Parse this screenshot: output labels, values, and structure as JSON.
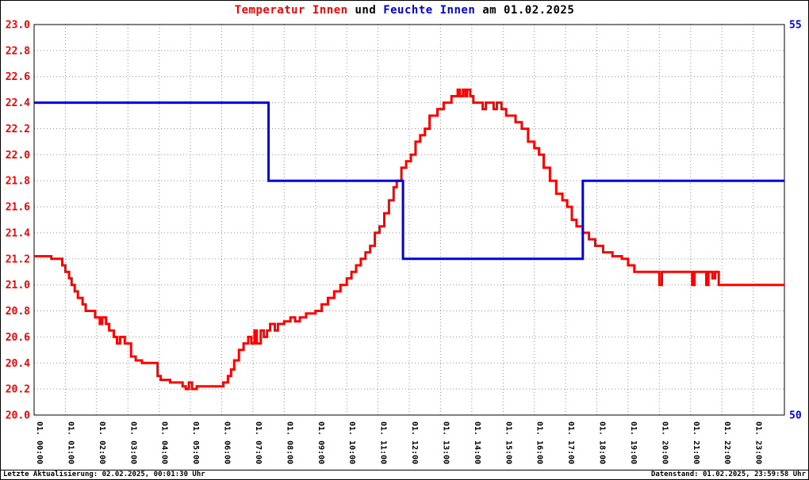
{
  "title": {
    "parts": [
      {
        "text": "Temperatur Innen",
        "color": "#ff0000"
      },
      {
        "text": " und ",
        "color": "#000000"
      },
      {
        "text": "Feuchte Innen",
        "color": "#0000dd"
      },
      {
        "text": " am 01.02.2025",
        "color": "#000000"
      }
    ]
  },
  "footer": {
    "left": "Letzte Aktualisierung: 02.02.2025, 00:01:30 Uhr",
    "right": "Datenstand: 01.02.2025, 23:59:58 Uhr"
  },
  "chart_data": {
    "type": "line",
    "subtype": "step-after",
    "grid": true,
    "grid_color": "#909090",
    "x_range": [
      0,
      24
    ],
    "x_labels": [
      "01. 00:00",
      "01. 01:00",
      "01. 02:00",
      "01. 03:00",
      "01. 04:00",
      "01. 05:00",
      "01. 06:00",
      "01. 07:00",
      "01. 08:00",
      "01. 09:00",
      "01. 10:00",
      "01. 11:00",
      "01. 12:00",
      "01. 13:00",
      "01. 14:00",
      "01. 15:00",
      "01. 16:00",
      "01. 17:00",
      "01. 18:00",
      "01. 19:00",
      "01. 20:00",
      "01. 21:00",
      "01. 22:00",
      "01. 23:00"
    ],
    "y_left": {
      "label": "Temperatur Innen",
      "min": 20.0,
      "max": 23.0,
      "tick_step": 0.2,
      "color": "#ff0000",
      "ticks": [
        "23.0",
        "22.8",
        "22.6",
        "22.4",
        "22.2",
        "22.0",
        "21.8",
        "21.6",
        "21.4",
        "21.2",
        "21.0",
        "20.8",
        "20.6",
        "20.4",
        "20.2",
        "20.0"
      ]
    },
    "y_right": {
      "label": "Feuchte Innen",
      "min": 50,
      "max": 55,
      "color": "#0000dd",
      "ticks": [
        "55",
        "50"
      ]
    },
    "series": [
      {
        "id": "temperatur-innen",
        "name": "Temperatur Innen",
        "axis": "left",
        "color": "#ff0000",
        "points": [
          [
            0,
            21.22
          ],
          [
            0.55,
            21.2
          ],
          [
            0.9,
            21.15
          ],
          [
            1.0,
            21.1
          ],
          [
            1.12,
            21.05
          ],
          [
            1.2,
            21.0
          ],
          [
            1.3,
            20.95
          ],
          [
            1.4,
            20.9
          ],
          [
            1.55,
            20.85
          ],
          [
            1.65,
            20.8
          ],
          [
            1.95,
            20.75
          ],
          [
            2.1,
            20.7
          ],
          [
            2.18,
            20.75
          ],
          [
            2.3,
            20.7
          ],
          [
            2.4,
            20.65
          ],
          [
            2.55,
            20.6
          ],
          [
            2.65,
            20.55
          ],
          [
            2.75,
            20.6
          ],
          [
            2.9,
            20.55
          ],
          [
            3.1,
            20.45
          ],
          [
            3.25,
            20.42
          ],
          [
            3.45,
            20.4
          ],
          [
            3.95,
            20.3
          ],
          [
            4.05,
            20.27
          ],
          [
            4.35,
            20.25
          ],
          [
            4.75,
            20.22
          ],
          [
            4.85,
            20.2
          ],
          [
            4.95,
            20.25
          ],
          [
            5.05,
            20.2
          ],
          [
            5.2,
            20.22
          ],
          [
            5.9,
            20.22
          ],
          [
            6.05,
            20.25
          ],
          [
            6.2,
            20.3
          ],
          [
            6.3,
            20.35
          ],
          [
            6.4,
            20.42
          ],
          [
            6.55,
            20.5
          ],
          [
            6.7,
            20.55
          ],
          [
            6.85,
            20.6
          ],
          [
            6.95,
            20.55
          ],
          [
            7.05,
            20.65
          ],
          [
            7.12,
            20.55
          ],
          [
            7.25,
            20.65
          ],
          [
            7.35,
            20.6
          ],
          [
            7.45,
            20.65
          ],
          [
            7.55,
            20.7
          ],
          [
            7.7,
            20.65
          ],
          [
            7.8,
            20.7
          ],
          [
            8.0,
            20.72
          ],
          [
            8.2,
            20.75
          ],
          [
            8.35,
            20.72
          ],
          [
            8.5,
            20.75
          ],
          [
            8.7,
            20.78
          ],
          [
            9.0,
            20.8
          ],
          [
            9.2,
            20.85
          ],
          [
            9.4,
            20.9
          ],
          [
            9.6,
            20.95
          ],
          [
            9.8,
            21.0
          ],
          [
            10.0,
            21.05
          ],
          [
            10.15,
            21.1
          ],
          [
            10.3,
            21.15
          ],
          [
            10.45,
            21.2
          ],
          [
            10.6,
            21.25
          ],
          [
            10.75,
            21.3
          ],
          [
            10.9,
            21.4
          ],
          [
            11.05,
            21.45
          ],
          [
            11.2,
            21.55
          ],
          [
            11.35,
            21.65
          ],
          [
            11.5,
            21.75
          ],
          [
            11.6,
            21.8
          ],
          [
            11.75,
            21.9
          ],
          [
            11.9,
            21.95
          ],
          [
            12.05,
            22.0
          ],
          [
            12.2,
            22.1
          ],
          [
            12.35,
            22.15
          ],
          [
            12.5,
            22.2
          ],
          [
            12.65,
            22.3
          ],
          [
            12.9,
            22.35
          ],
          [
            13.1,
            22.4
          ],
          [
            13.35,
            22.45
          ],
          [
            13.55,
            22.5
          ],
          [
            13.62,
            22.45
          ],
          [
            13.72,
            22.5
          ],
          [
            13.8,
            22.45
          ],
          [
            13.85,
            22.5
          ],
          [
            13.95,
            22.45
          ],
          [
            14.05,
            22.4
          ],
          [
            14.35,
            22.35
          ],
          [
            14.45,
            22.4
          ],
          [
            14.7,
            22.35
          ],
          [
            14.8,
            22.4
          ],
          [
            14.95,
            22.35
          ],
          [
            15.1,
            22.3
          ],
          [
            15.4,
            22.25
          ],
          [
            15.6,
            22.2
          ],
          [
            15.8,
            22.1
          ],
          [
            16.0,
            22.05
          ],
          [
            16.15,
            22.0
          ],
          [
            16.3,
            21.9
          ],
          [
            16.5,
            21.8
          ],
          [
            16.7,
            21.7
          ],
          [
            16.9,
            21.65
          ],
          [
            17.05,
            21.6
          ],
          [
            17.2,
            21.5
          ],
          [
            17.35,
            21.45
          ],
          [
            17.55,
            21.4
          ],
          [
            17.75,
            21.35
          ],
          [
            17.95,
            21.3
          ],
          [
            18.2,
            21.25
          ],
          [
            18.5,
            21.22
          ],
          [
            18.8,
            21.2
          ],
          [
            19.0,
            21.15
          ],
          [
            19.2,
            21.1
          ],
          [
            20.0,
            21.0
          ],
          [
            20.08,
            21.1
          ],
          [
            21.05,
            21.0
          ],
          [
            21.12,
            21.1
          ],
          [
            21.5,
            21.0
          ],
          [
            21.57,
            21.1
          ],
          [
            21.7,
            21.05
          ],
          [
            21.78,
            21.1
          ],
          [
            21.9,
            21.0
          ],
          [
            24,
            21.0
          ]
        ]
      },
      {
        "id": "feuchte-innen",
        "name": "Feuchte Innen",
        "axis": "right",
        "color": "#0000dd",
        "points": [
          [
            0,
            54
          ],
          [
            7.5,
            53
          ],
          [
            11.8,
            52
          ],
          [
            17.55,
            53
          ],
          [
            24,
            53
          ]
        ]
      }
    ]
  }
}
